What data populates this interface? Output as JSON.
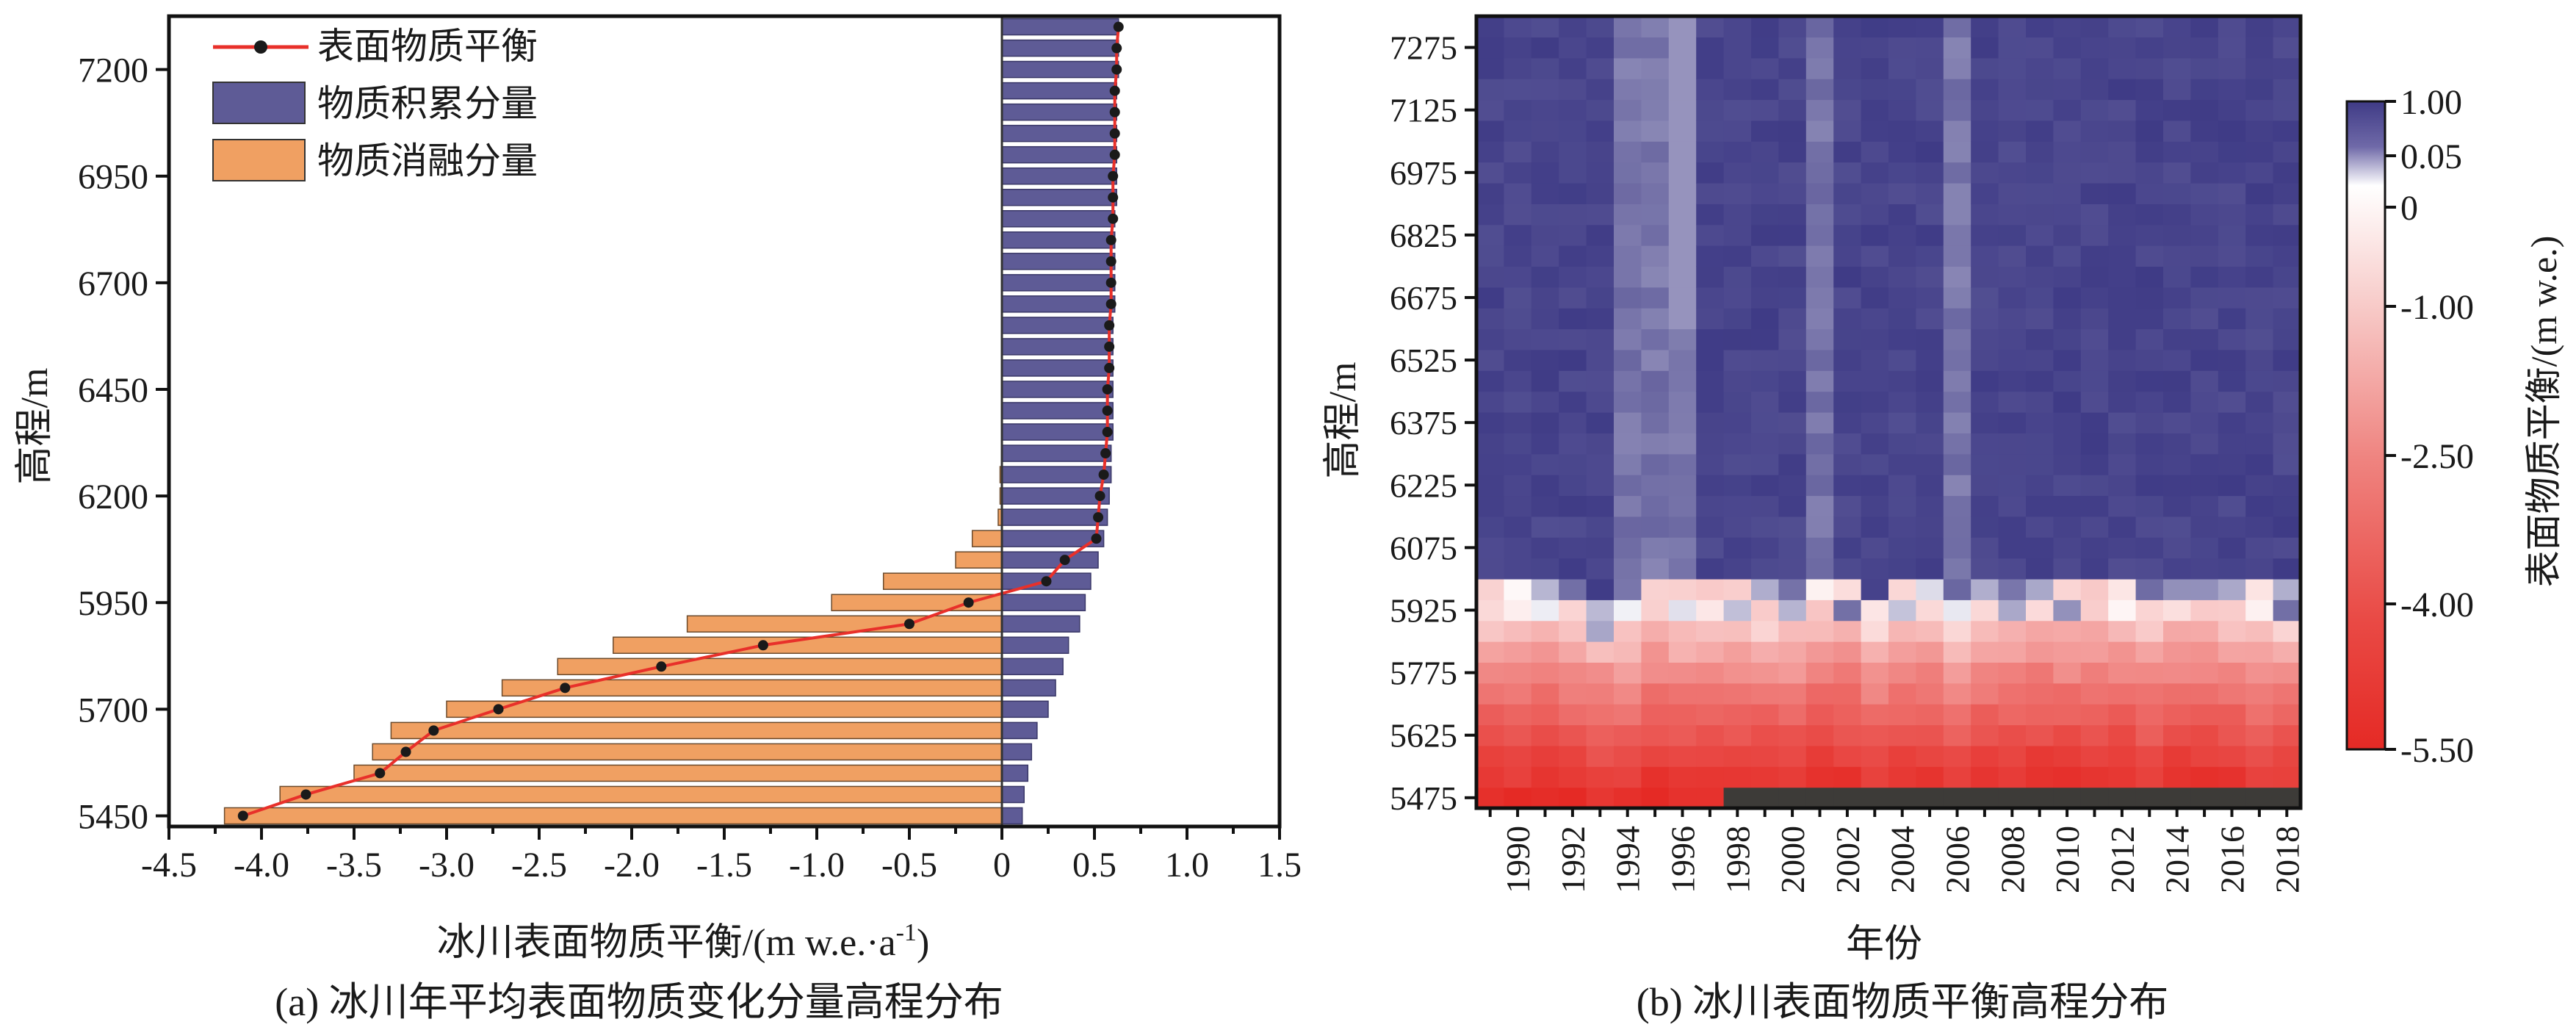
{
  "panel_a": {
    "caption": "(a) 冰川年平均表面物质变化分量高程分布",
    "xlabel_main": "冰川表面物质平衡/(m w.e.·a",
    "xlabel_sup": "-1",
    "xlabel_close": ")",
    "ylabel": "高程/m",
    "xticks": [
      "-4.5",
      "-4.0",
      "-3.5",
      "-3.0",
      "-2.5",
      "-2.0",
      "-1.5",
      "-1.0",
      "-0.5",
      "0",
      "0.5",
      "1.0",
      "1.5"
    ],
    "yticks": [
      "5450",
      "5700",
      "5950",
      "6200",
      "6450",
      "6700",
      "6950",
      "7200"
    ],
    "legend": [
      "表面物质平衡",
      "物质积累分量",
      "物质消融分量"
    ]
  },
  "panel_b": {
    "caption": "(b) 冰川表面物质平衡高程分布",
    "xlabel": "年份",
    "ylabel": "高程/m",
    "colorbar_label": "表面物质平衡/(m w.e.)",
    "colorbar_ticks": [
      "1.00",
      "0.05",
      "0",
      "-1.00",
      "-2.50",
      "-4.00",
      "-5.50"
    ],
    "xticks": [
      "1990",
      "1992",
      "1994",
      "1996",
      "1998",
      "2000",
      "2002",
      "2004",
      "2006",
      "2008",
      "2010",
      "2012",
      "2014",
      "2016",
      "2018"
    ],
    "yticks": [
      "7275",
      "7125",
      "6975",
      "6825",
      "6675",
      "6525",
      "6375",
      "6225",
      "6075",
      "5925",
      "5775",
      "5625",
      "5475"
    ]
  },
  "colors": {
    "line": "#e8302a",
    "marker": "#1a1a1a",
    "accumulation": "#5e5b96",
    "ablation": "#f0a062",
    "heat_high": "#3f3b86",
    "heat_zero": "#ffffff",
    "heat_low": "#e52a25",
    "no_data": "#3d3b38"
  },
  "chart_data": [
    {
      "type": "bar",
      "orientation": "horizontal",
      "xlabel": "冰川表面物质平衡/(m w.e.·a-1)",
      "ylabel": "高程/m",
      "xlim": [
        -4.5,
        1.5
      ],
      "ylim": [
        5425,
        7325
      ],
      "legend_position": "top-left",
      "elevation": [
        5450,
        5500,
        5550,
        5600,
        5650,
        5700,
        5750,
        5800,
        5850,
        5900,
        5950,
        6000,
        6050,
        6100,
        6150,
        6200,
        6250,
        6300,
        6350,
        6400,
        6450,
        6500,
        6550,
        6600,
        6650,
        6700,
        6750,
        6800,
        6850,
        6900,
        6950,
        7000,
        7050,
        7100,
        7150,
        7200,
        7250,
        7300
      ],
      "series": [
        {
          "name": "物质积累分量",
          "values": [
            0.11,
            0.12,
            0.14,
            0.16,
            0.19,
            0.25,
            0.29,
            0.33,
            0.36,
            0.42,
            0.45,
            0.48,
            0.52,
            0.55,
            0.57,
            0.58,
            0.59,
            0.59,
            0.6,
            0.6,
            0.6,
            0.6,
            0.6,
            0.6,
            0.61,
            0.61,
            0.61,
            0.61,
            0.61,
            0.62,
            0.62,
            0.62,
            0.62,
            0.62,
            0.62,
            0.63,
            0.63,
            0.63
          ]
        },
        {
          "name": "物质消融分量",
          "values": [
            -4.2,
            -3.9,
            -3.5,
            -3.4,
            -3.3,
            -3.0,
            -2.7,
            -2.4,
            -2.1,
            -1.7,
            -0.92,
            -0.64,
            -0.25,
            -0.16,
            -0.02,
            -0.01,
            -0.01,
            0,
            0,
            0,
            0,
            0,
            0,
            0,
            0,
            0,
            0,
            0,
            0,
            0,
            0,
            0,
            0,
            0,
            0,
            0,
            0,
            0
          ]
        },
        {
          "name": "表面物质平衡",
          "values": [
            -4.1,
            -3.76,
            -3.36,
            -3.22,
            -3.07,
            -2.72,
            -2.36,
            -1.84,
            -1.29,
            -0.5,
            -0.18,
            0.24,
            0.34,
            0.51,
            0.52,
            0.53,
            0.55,
            0.56,
            0.57,
            0.57,
            0.57,
            0.58,
            0.58,
            0.58,
            0.59,
            0.59,
            0.59,
            0.59,
            0.6,
            0.6,
            0.6,
            0.61,
            0.61,
            0.61,
            0.61,
            0.62,
            0.62,
            0.63
          ]
        }
      ]
    },
    {
      "type": "heatmap",
      "xlabel": "年份",
      "ylabel": "高程/m",
      "years": [
        1989,
        1990,
        1991,
        1992,
        1993,
        1994,
        1995,
        1996,
        1997,
        1998,
        1999,
        2000,
        2001,
        2002,
        2003,
        2004,
        2005,
        2006,
        2007,
        2008,
        2009,
        2010,
        2011,
        2012,
        2013,
        2014,
        2015,
        2016,
        2017,
        2018
      ],
      "elevation": [
        5475,
        5525,
        5575,
        5625,
        5675,
        5725,
        5775,
        5825,
        5875,
        5925,
        5975,
        6025,
        6075,
        6125,
        6175,
        6225,
        6275,
        6325,
        6375,
        6425,
        6475,
        6525,
        6575,
        6625,
        6675,
        6725,
        6775,
        6825,
        6875,
        6925,
        6975,
        7025,
        7075,
        7125,
        7175,
        7225,
        7275,
        7325
      ],
      "colorbar_range": [
        -5.5,
        1.0
      ],
      "no_data": "dark cells at lowest elevations after 1998",
      "note": "negative balance below ~5925 m, positive above"
    }
  ]
}
